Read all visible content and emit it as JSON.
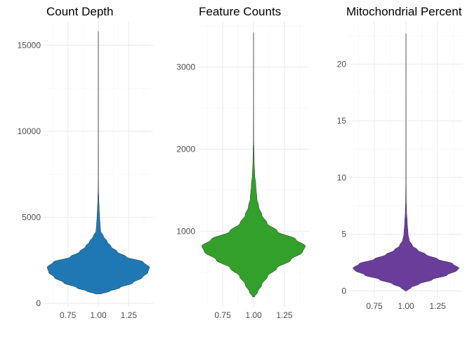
{
  "chart_data": [
    {
      "type": "violin",
      "title": "Count Depth",
      "xlabel": "",
      "ylabel": "",
      "fill": "#1f78b4",
      "x": 1,
      "xlim": [
        0.55,
        1.45
      ],
      "x_ticks": [
        0.75,
        1.0,
        1.25
      ],
      "x_tick_labels": [
        "0.75",
        "1.00",
        "1.25"
      ],
      "ylim": [
        -200,
        16400
      ],
      "y_ticks": [
        0,
        5000,
        10000,
        15000
      ],
      "y_tick_labels": [
        "0",
        "5000",
        "10000",
        "15000"
      ],
      "data_range": [
        550,
        15800
      ],
      "density_profile": [
        [
          550,
          0.06
        ],
        [
          700,
          0.22
        ],
        [
          900,
          0.42
        ],
        [
          1200,
          0.68
        ],
        [
          1500,
          0.86
        ],
        [
          1800,
          0.97
        ],
        [
          2100,
          1.0
        ],
        [
          2400,
          0.88
        ],
        [
          2700,
          0.55
        ],
        [
          3000,
          0.37
        ],
        [
          3300,
          0.25
        ],
        [
          3600,
          0.17
        ],
        [
          3900,
          0.1
        ],
        [
          4200,
          0.045
        ],
        [
          4600,
          0.035
        ],
        [
          5000,
          0.026
        ],
        [
          5500,
          0.018
        ],
        [
          6000,
          0.01
        ],
        [
          6600,
          0.005
        ],
        [
          7500,
          0.003
        ],
        [
          10000,
          0.002
        ],
        [
          15800,
          0.0015
        ]
      ],
      "grid": true
    },
    {
      "type": "violin",
      "title": "Feature Counts",
      "xlabel": "",
      "ylabel": "",
      "fill": "#33a02c",
      "x": 1,
      "xlim": [
        0.55,
        1.45
      ],
      "x_ticks": [
        0.75,
        1.0,
        1.25
      ],
      "x_tick_labels": [
        "0.75",
        "1.00",
        "1.25"
      ],
      "ylim": [
        80,
        3560
      ],
      "y_ticks": [
        1000,
        2000,
        3000
      ],
      "y_tick_labels": [
        "1000",
        "2000",
        "3000"
      ],
      "data_range": [
        200,
        3420
      ],
      "density_profile": [
        [
          200,
          0.02
        ],
        [
          260,
          0.08
        ],
        [
          350,
          0.16
        ],
        [
          450,
          0.27
        ],
        [
          550,
          0.45
        ],
        [
          650,
          0.72
        ],
        [
          750,
          0.95
        ],
        [
          820,
          1.0
        ],
        [
          900,
          0.82
        ],
        [
          1000,
          0.46
        ],
        [
          1100,
          0.26
        ],
        [
          1200,
          0.16
        ],
        [
          1300,
          0.1
        ],
        [
          1400,
          0.065
        ],
        [
          1550,
          0.045
        ],
        [
          1700,
          0.022
        ],
        [
          1850,
          0.012
        ],
        [
          2000,
          0.008
        ],
        [
          2100,
          0.004
        ],
        [
          2500,
          0.002
        ],
        [
          3420,
          0.0012
        ]
      ],
      "grid": true
    },
    {
      "type": "violin",
      "title": "Mitochondrial Percent",
      "xlabel": "",
      "ylabel": "",
      "fill": "#6a3d9a",
      "x": 1,
      "xlim": [
        0.55,
        1.45
      ],
      "x_ticks": [
        0.75,
        1.0,
        1.25
      ],
      "x_tick_labels": [
        "0.75",
        "1.00",
        "1.25"
      ],
      "ylim": [
        -0.6,
        23.8
      ],
      "y_ticks": [
        0,
        5,
        10,
        15,
        20
      ],
      "y_tick_labels": [
        "0",
        "5",
        "10",
        "15",
        "20"
      ],
      "data_range": [
        0.0,
        22.7
      ],
      "density_profile": [
        [
          0.0,
          0.02
        ],
        [
          0.3,
          0.1
        ],
        [
          0.6,
          0.25
        ],
        [
          1.0,
          0.5
        ],
        [
          1.4,
          0.78
        ],
        [
          1.8,
          0.96
        ],
        [
          2.0,
          1.0
        ],
        [
          2.4,
          0.88
        ],
        [
          2.8,
          0.6
        ],
        [
          3.2,
          0.38
        ],
        [
          3.6,
          0.22
        ],
        [
          4.0,
          0.12
        ],
        [
          4.5,
          0.06
        ],
        [
          5.0,
          0.04
        ],
        [
          6.0,
          0.025
        ],
        [
          7.0,
          0.012
        ],
        [
          8.0,
          0.006
        ],
        [
          10.0,
          0.003
        ],
        [
          15.0,
          0.0018
        ],
        [
          22.7,
          0.0012
        ]
      ],
      "grid": true
    }
  ]
}
